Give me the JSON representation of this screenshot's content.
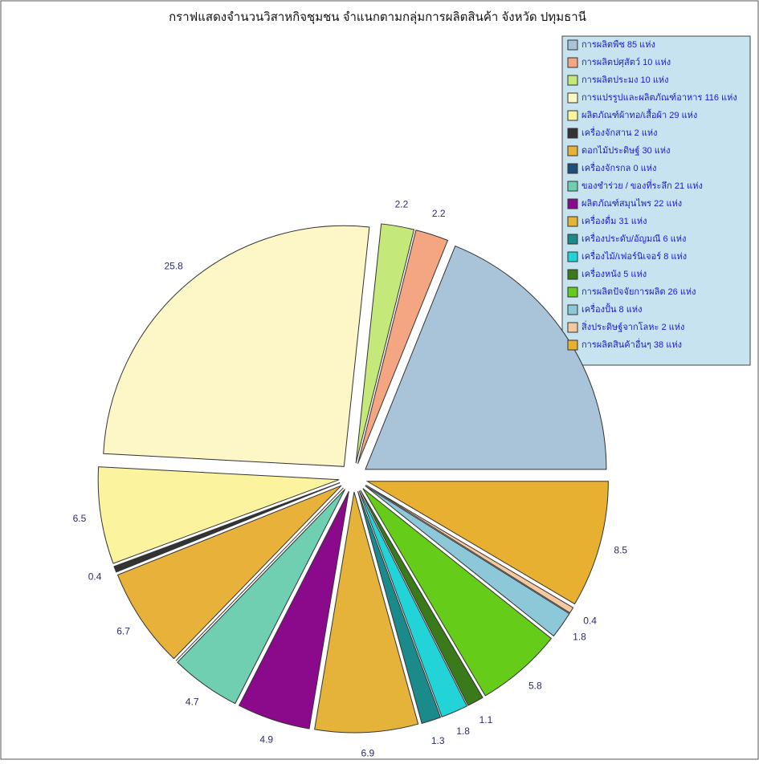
{
  "chart_data": {
    "type": "pie",
    "title": "กราฟแสดงจำนวนวิสาหกิจชุมชน จำแนกตามกลุ่มการผลิตสินค้า จังหวัด  ปทุมธานี",
    "categories": [
      "การผลิตพืช 85 แห่ง",
      "การผลิตปศุสัตว์ 10 แห่ง",
      "การผลิตประมง 10 แห่ง",
      "การแปรรูปและผลิตภัณฑ์อาหาร 116 แห่ง",
      "ผลิตภัณฑ์ผ้าทอ/เสื้อผ้า 29 แห่ง",
      "เครื่องจักสาน 2 แห่ง",
      "ดอกไม้ประดิษฐ์ 30 แห่ง",
      "เครื่องจักรกล 0 แห่ง",
      "ของชำร่วย / ของที่ระลึก 21 แห่ง",
      "ผลิตภัณฑ์สมุนไพร 22 แห่ง",
      "เครื่องดื่ม 31 แห่ง",
      "เครื่องประดับ/อัญมณี 6 แห่ง",
      "เครื่องไม้/เฟอร์นิเจอร์ 8 แห่ง",
      "เครื่องหนัง 5 แห่ง",
      "การผลิตปัจจัยการผลิต 26 แห่ง",
      "เครื่องปั้น 8 แห่ง",
      "สิ่งประดิษฐ์จากโลหะ 2 แห่ง",
      "การผลิตสินค้าอื่นๆ 38 แห่ง"
    ],
    "values": [
      18.9,
      2.2,
      2.2,
      25.8,
      6.5,
      0.4,
      6.7,
      0,
      4.7,
      4.9,
      6.9,
      1.3,
      1.8,
      1.1,
      5.8,
      1.8,
      0.4,
      8.5
    ],
    "value_labels": [
      null,
      "2.2",
      "2.2",
      "25.8",
      "6.5",
      "0.4",
      "6.7",
      null,
      "4.7",
      "4.9",
      "6.9",
      "1.3",
      "1.8",
      "1.1",
      "5.8",
      "1.8",
      "0.4",
      "8.5"
    ],
    "colors": [
      "#a9c4d9",
      "#f4a582",
      "#c5e87a",
      "#fdf7c7",
      "#fbf39e",
      "#333333",
      "#e8b13a",
      "#1f4e79",
      "#6fcfb0",
      "#8b0a8b",
      "#e6b33a",
      "#1a8a8a",
      "#22d3d8",
      "#3a7a1a",
      "#66cc1a",
      "#8cc8d8",
      "#f5c8a0",
      "#e8b030"
    ],
    "legend": "upper right"
  }
}
